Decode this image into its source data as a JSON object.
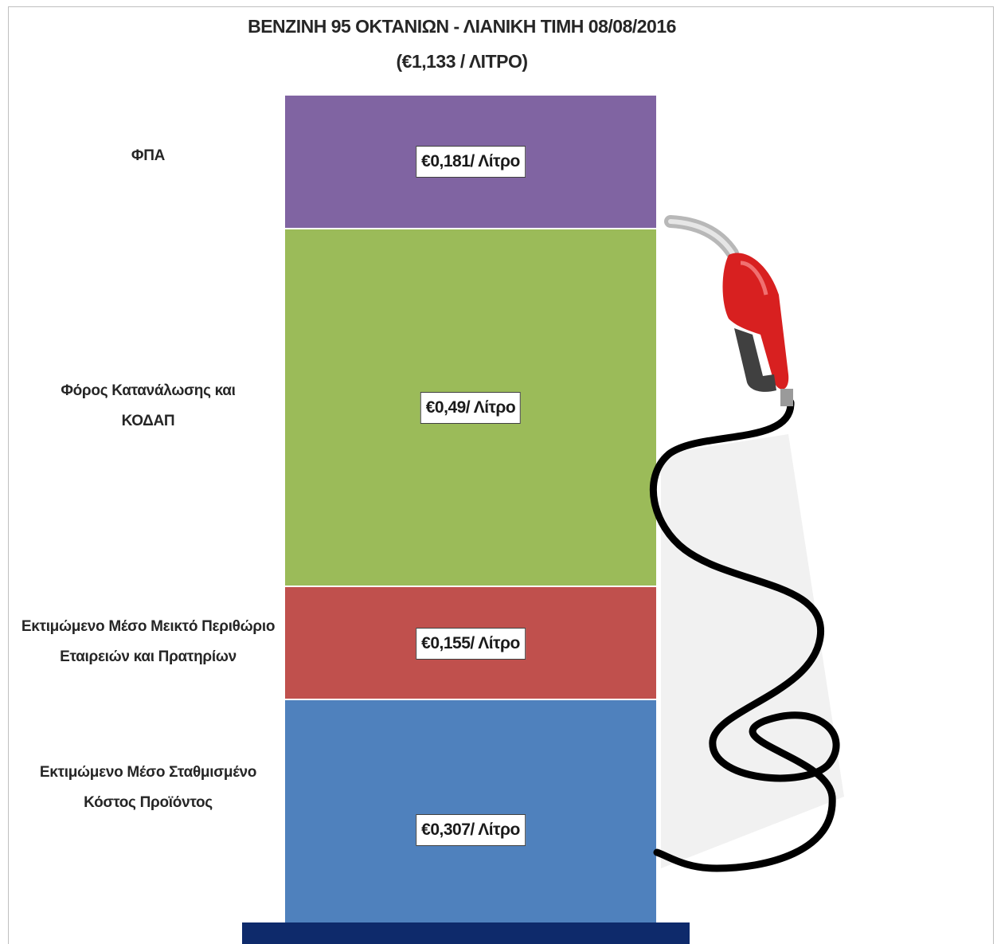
{
  "title_line1": "ΒΕΝΖΙΝΗ 95 ΟΚΤΑΝΙΩΝ - ΛΙΑΝΙΚΗ ΤΙΜΗ 08/08/2016",
  "title_line2": "(€1,133 / ΛΙΤΡΟ)",
  "chart_data": {
    "type": "bar",
    "stacked": true,
    "title": "ΒΕΝΖΙΝΗ 95 ΟΚΤΑΝΙΩΝ - ΛΙΑΝΙΚΗ ΤΙΜΗ 08/08/2016",
    "subtitle": "(€1,133 / ΛΙΤΡΟ)",
    "total": 1.133,
    "unit": "€/Λίτρο",
    "segments": [
      {
        "name": "Εκτιμώμενο Μέσο Σταθμισμένο Κόστος Προϊόντος",
        "label_lines": [
          "Εκτιμώμενο Μέσο Σταθμισμένο",
          "Κόστος Προϊόντος"
        ],
        "value": 0.307,
        "value_label": "€0,307/ Λίτρο",
        "color": "#4f81bd"
      },
      {
        "name": "Εκτιμώμενο Μέσο Μεικτό Περιθώριο Εταιρειών και Πρατηρίων",
        "label_lines": [
          "Εκτιμώμενο Μέσο Μεικτό Περιθώριο",
          "Εταιρειών και Πρατηρίων"
        ],
        "value": 0.155,
        "value_label": "€0,155/ Λίτρο",
        "color": "#c0504d"
      },
      {
        "name": "Φόρος Κατανάλωσης και ΚΟΔΑΠ",
        "label_lines": [
          "Φόρος Κατανάλωσης και",
          "ΚΟΔΑΠ"
        ],
        "value": 0.49,
        "value_label": "€0,49/ Λίτρο",
        "color": "#9bbb59"
      },
      {
        "name": "ΦΠΑ",
        "label_lines": [
          "ΦΠΑ"
        ],
        "value": 0.181,
        "value_label": "€0,181/ Λίτρο",
        "color": "#8064a2"
      }
    ]
  },
  "decoration": {
    "base_color": "#0e2a6b",
    "nozzle_icon": "fuel-nozzle-icon",
    "hose_icon": "fuel-hose-icon"
  }
}
